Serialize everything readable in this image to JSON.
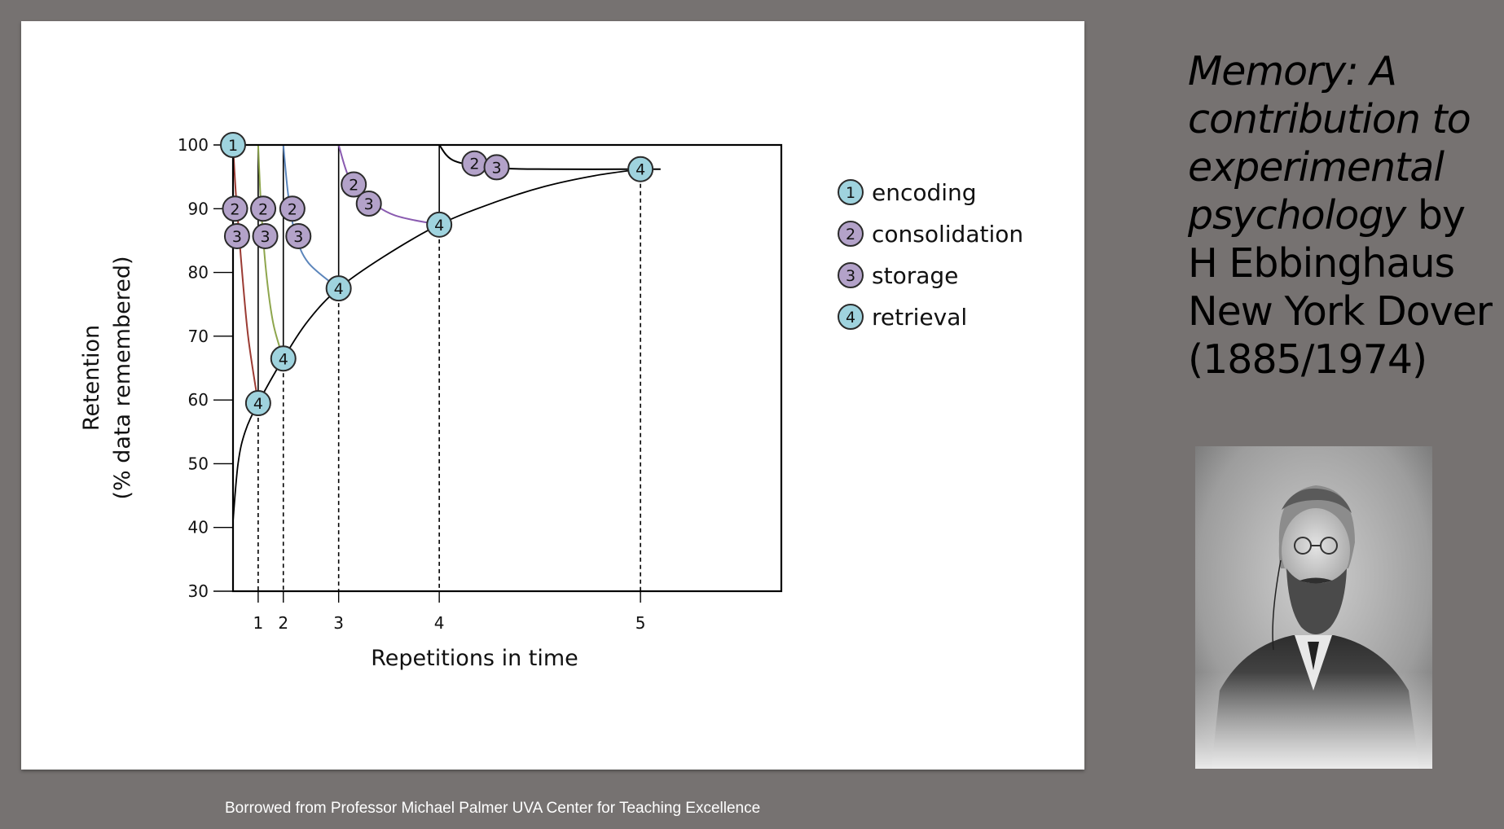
{
  "title": {
    "book": "Memory: A contribution to experimental psychology",
    "rest": " by H Ebbinghaus New York Dover (1885/1974)"
  },
  "credit": "Borrowed from Professor Michael Palmer UVA Center for Teaching Excellence",
  "colors": {
    "background": "#767271",
    "encoding": "#9fd3de",
    "consolidation": "#b3a2c9",
    "curve1": "#9b3b33",
    "curve2": "#8ea64d",
    "curve3": "#5b85bb",
    "curve4": "#8a5bb0",
    "axis": "#000000"
  },
  "chart_data": {
    "type": "line",
    "xlabel": "Repetitions in time",
    "ylabel": "Retention",
    "ylabel2": "(% data remembered)",
    "ylim": [
      30,
      100
    ],
    "xlim": [
      0,
      5.45
    ],
    "y_ticks": [
      "100",
      "90",
      "80",
      "70",
      "60",
      "50",
      "40",
      "30"
    ],
    "y_tick_values": [
      100,
      90,
      80,
      70,
      60,
      50,
      40,
      30
    ],
    "x_ticks": [
      "1",
      "2",
      "3",
      "4",
      "5"
    ],
    "x_tick_values": [
      0.25,
      0.5,
      1.05,
      2.05,
      4.05
    ],
    "legend": [
      {
        "marker": "1",
        "label": "encoding",
        "kind": "encoding"
      },
      {
        "marker": "2",
        "label": "consolidation",
        "kind": "consolidation"
      },
      {
        "marker": "3",
        "label": "storage",
        "kind": "consolidation"
      },
      {
        "marker": "4",
        "label": "retrieval",
        "kind": "encoding"
      }
    ],
    "retention_envelope": [
      [
        0,
        41
      ],
      [
        0.05,
        50
      ],
      [
        0.12,
        55
      ],
      [
        0.25,
        59.5
      ],
      [
        0.5,
        66.5
      ],
      [
        0.75,
        72.5
      ],
      [
        1.05,
        77.5
      ],
      [
        1.5,
        82.5
      ],
      [
        2.05,
        87.5
      ],
      [
        2.6,
        91
      ],
      [
        3.1,
        93.5
      ],
      [
        3.6,
        95.2
      ],
      [
        4.05,
        96.2
      ]
    ],
    "forgetting_curves": [
      {
        "kind": "curve1",
        "points": [
          [
            0,
            100
          ],
          [
            0.03,
            92
          ],
          [
            0.08,
            82
          ],
          [
            0.15,
            70
          ],
          [
            0.25,
            59.5
          ]
        ]
      },
      {
        "kind": "curve2",
        "points": [
          [
            0.25,
            100
          ],
          [
            0.28,
            90
          ],
          [
            0.33,
            80
          ],
          [
            0.4,
            72
          ],
          [
            0.5,
            66.5
          ]
        ]
      },
      {
        "kind": "curve3",
        "points": [
          [
            0.5,
            100
          ],
          [
            0.55,
            92
          ],
          [
            0.62,
            86
          ],
          [
            0.75,
            81.5
          ],
          [
            1.05,
            77.5
          ]
        ]
      },
      {
        "kind": "curve4",
        "points": [
          [
            1.05,
            100
          ],
          [
            1.15,
            95
          ],
          [
            1.3,
            92
          ],
          [
            1.6,
            89
          ],
          [
            2.05,
            87.5
          ]
        ]
      },
      {
        "kind": "axis",
        "points": [
          [
            2.05,
            100
          ],
          [
            2.2,
            97.5
          ],
          [
            2.6,
            96.4
          ],
          [
            3.2,
            96.2
          ],
          [
            4.05,
            96.2
          ],
          [
            4.25,
            96.2
          ]
        ]
      }
    ],
    "vertical_solid_lines": [
      0.25,
      0.5,
      1.05,
      2.05
    ],
    "retrieval_dashes": [
      {
        "x": 0.25,
        "y": 59.5
      },
      {
        "x": 0.5,
        "y": 66.5
      },
      {
        "x": 1.05,
        "y": 77.5
      },
      {
        "x": 2.05,
        "y": 87.5
      },
      {
        "x": 4.05,
        "y": 96.2
      }
    ],
    "markers": [
      {
        "label": "1",
        "kind": "encoding",
        "x": 0,
        "y": 100
      },
      {
        "label": "2",
        "kind": "consolidation",
        "x": 0.02,
        "y": 90
      },
      {
        "label": "3",
        "kind": "consolidation",
        "x": 0.04,
        "y": 85.7
      },
      {
        "label": "2",
        "kind": "consolidation",
        "x": 0.3,
        "y": 90
      },
      {
        "label": "3",
        "kind": "consolidation",
        "x": 0.32,
        "y": 85.7
      },
      {
        "label": "2",
        "kind": "consolidation",
        "x": 0.59,
        "y": 90
      },
      {
        "label": "3",
        "kind": "consolidation",
        "x": 0.65,
        "y": 85.7
      },
      {
        "label": "2",
        "kind": "consolidation",
        "x": 1.2,
        "y": 93.8
      },
      {
        "label": "3",
        "kind": "consolidation",
        "x": 1.35,
        "y": 90.8
      },
      {
        "label": "2",
        "kind": "consolidation",
        "x": 2.4,
        "y": 97.1
      },
      {
        "label": "3",
        "kind": "consolidation",
        "x": 2.62,
        "y": 96.5
      },
      {
        "label": "4",
        "kind": "encoding",
        "x": 0.25,
        "y": 59.5
      },
      {
        "label": "4",
        "kind": "encoding",
        "x": 0.5,
        "y": 66.5
      },
      {
        "label": "4",
        "kind": "encoding",
        "x": 1.05,
        "y": 77.5
      },
      {
        "label": "4",
        "kind": "encoding",
        "x": 2.05,
        "y": 87.5
      },
      {
        "label": "4",
        "kind": "encoding",
        "x": 4.05,
        "y": 96.2
      }
    ]
  }
}
